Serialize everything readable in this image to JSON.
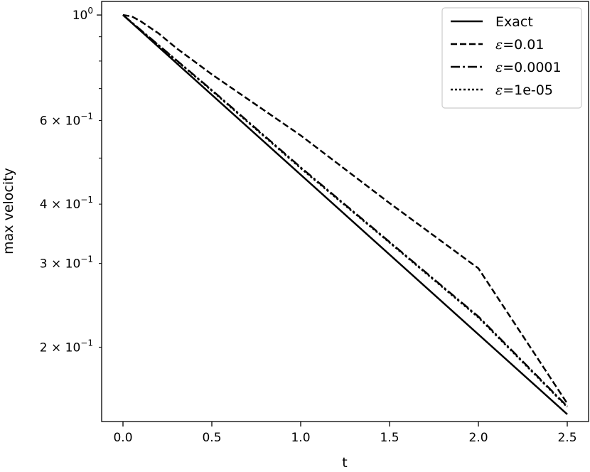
{
  "chart_data": {
    "type": "line",
    "title": "",
    "xlabel": "t",
    "ylabel": "max velocity",
    "xlim": [
      -0.12,
      2.62
    ],
    "ylim": [
      0.1395,
      1.068
    ],
    "yscale": "log",
    "grid": false,
    "legend_position": "top-right",
    "x_ticks": [
      {
        "value": 0.0,
        "label": "0.0"
      },
      {
        "value": 0.5,
        "label": "0.5"
      },
      {
        "value": 1.0,
        "label": "1.0"
      },
      {
        "value": 1.5,
        "label": "1.5"
      },
      {
        "value": 2.0,
        "label": "2.0"
      },
      {
        "value": 2.5,
        "label": "2.5"
      }
    ],
    "y_major_ticks": [
      {
        "value": 1.0,
        "mantissa": "",
        "base": "10",
        "exponent": "0"
      }
    ],
    "y_minor_ticks": [
      {
        "value": 0.2,
        "mantissa": "2",
        "base": "10",
        "exponent": "−1"
      },
      {
        "value": 0.3,
        "mantissa": "3",
        "base": "10",
        "exponent": "−1"
      },
      {
        "value": 0.4,
        "mantissa": "4",
        "base": "10",
        "exponent": "−1"
      },
      {
        "value": 0.6,
        "mantissa": "6",
        "base": "10",
        "exponent": "−1"
      }
    ],
    "y_minor_unlabeled": [
      0.5,
      0.7,
      0.8,
      0.9
    ],
    "series": [
      {
        "name": "Exact",
        "label_prefix": "",
        "style": "solid",
        "x": [
          0.0,
          2.5
        ],
        "y": [
          1.0,
          0.1445
        ]
      },
      {
        "name": "ε=0.01",
        "label_prefix": "ε",
        "label_suffix": "=0.01",
        "style": "dashed",
        "x": [
          0.0,
          0.05,
          0.1,
          0.2,
          0.3,
          0.5,
          1.0,
          1.5,
          2.0,
          2.5
        ],
        "y": [
          1.0,
          0.993,
          0.97,
          0.915,
          0.852,
          0.75,
          0.558,
          0.402,
          0.293,
          0.1523
        ]
      },
      {
        "name": "ε=0.0001",
        "label_prefix": "ε",
        "label_suffix": "=0.0001",
        "style": "dashdot",
        "x": [
          0.0,
          0.5,
          1.0,
          1.5,
          2.0,
          2.5
        ],
        "y": [
          1.0,
          0.695,
          0.478,
          0.333,
          0.232,
          0.1501
        ]
      },
      {
        "name": "ε=1e-05",
        "label_prefix": "ε",
        "label_suffix": "=1e-05",
        "style": "dotted",
        "x": [
          0.0,
          0.5,
          1.0,
          1.5,
          2.0,
          2.5
        ],
        "y": [
          1.0,
          0.693,
          0.476,
          0.332,
          0.231,
          0.1496
        ]
      }
    ]
  }
}
